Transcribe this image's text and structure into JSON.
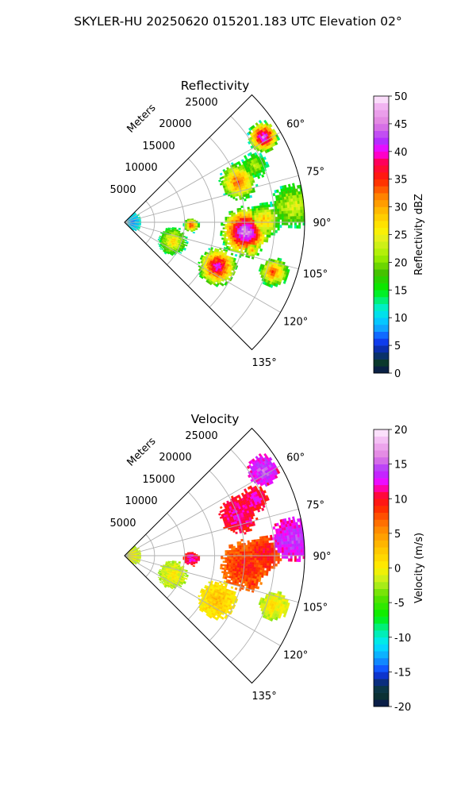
{
  "figure_title": "SKYLER-HU  20250620  015201.183 UTC Elevation 02°",
  "chart_data": [
    {
      "type": "heatmap",
      "projection": "polar-sector",
      "title": "Reflectivity",
      "radial_label": "Meters",
      "radial_ticks": [
        "5000",
        "10000",
        "15000",
        "20000",
        "25000"
      ],
      "radial_tick_values": [
        5000,
        10000,
        15000,
        20000,
        25000
      ],
      "range_max": 30000,
      "azimuth_range": [
        45,
        135
      ],
      "azimuth_ticks": [
        "60°",
        "75°",
        "90°",
        "105°",
        "120°",
        "135°"
      ],
      "azimuth_tick_values": [
        60,
        75,
        90,
        105,
        120,
        135
      ],
      "grid": true,
      "colorbar": {
        "label": "Reflectivity dBZ",
        "range": [
          0,
          50
        ],
        "ticks": [
          "0",
          "5",
          "10",
          "15",
          "20",
          "25",
          "30",
          "35",
          "40",
          "45",
          "50"
        ],
        "tick_values": [
          0,
          5,
          10,
          15,
          20,
          25,
          30,
          35,
          40,
          45,
          50
        ],
        "colors": [
          [
            0,
            "#0a1450"
          ],
          [
            2,
            "#0b3a2a"
          ],
          [
            4,
            "#0a2a9a"
          ],
          [
            6,
            "#1040ff"
          ],
          [
            8,
            "#10a0ff"
          ],
          [
            10,
            "#00d8ff"
          ],
          [
            12,
            "#00f0c0"
          ],
          [
            15,
            "#00f000"
          ],
          [
            18,
            "#40c000"
          ],
          [
            21,
            "#a0f000"
          ],
          [
            24,
            "#e0f020"
          ],
          [
            26,
            "#fff000"
          ],
          [
            29,
            "#ffc000"
          ],
          [
            32,
            "#ff8000"
          ],
          [
            35,
            "#ff2000"
          ],
          [
            38,
            "#ff0050"
          ],
          [
            40,
            "#ff00ff"
          ],
          [
            42,
            "#b030ff"
          ],
          [
            45,
            "#e080e0"
          ],
          [
            48,
            "#f0b0f0"
          ],
          [
            50,
            "#fff0ff"
          ]
        ]
      },
      "cells": [
        {
          "az": 58,
          "range": 27000,
          "peak": 45,
          "size": 2600
        },
        {
          "az": 70,
          "range": 20000,
          "peak": 35,
          "size": 3200
        },
        {
          "az": 66,
          "range": 23500,
          "peak": 22,
          "size": 2200
        },
        {
          "az": 84,
          "range": 28000,
          "peak": 25,
          "size": 3800
        },
        {
          "az": 94,
          "range": 20000,
          "peak": 48,
          "size": 4200
        },
        {
          "az": 89,
          "range": 23000,
          "peak": 30,
          "size": 3000
        },
        {
          "az": 92,
          "range": 11000,
          "peak": 36,
          "size": 1300
        },
        {
          "az": 115,
          "range": 17000,
          "peak": 42,
          "size": 3300
        },
        {
          "az": 111,
          "range": 8500,
          "peak": 28,
          "size": 2400
        },
        {
          "az": 108,
          "range": 26000,
          "peak": 34,
          "size": 2500
        },
        {
          "az": 102,
          "range": 21500,
          "peak": 30,
          "size": 1400
        },
        {
          "az": 90,
          "range": 1200,
          "peak": 8,
          "size": 1500
        }
      ]
    },
    {
      "type": "heatmap",
      "projection": "polar-sector",
      "title": "Velocity",
      "radial_label": "Meters",
      "radial_ticks": [
        "5000",
        "10000",
        "15000",
        "20000",
        "25000"
      ],
      "radial_tick_values": [
        5000,
        10000,
        15000,
        20000,
        25000
      ],
      "range_max": 30000,
      "azimuth_range": [
        45,
        135
      ],
      "azimuth_ticks": [
        "60°",
        "75°",
        "90°",
        "105°",
        "120°",
        "135°"
      ],
      "azimuth_tick_values": [
        60,
        75,
        90,
        105,
        120,
        135
      ],
      "grid": true,
      "colorbar": {
        "label": "Velocity (m/s)",
        "range": [
          -20,
          20
        ],
        "ticks": [
          "-20",
          "-15",
          "-10",
          "-5",
          "0",
          "5",
          "10",
          "15",
          "20"
        ],
        "tick_values": [
          -20,
          -15,
          -10,
          -5,
          0,
          5,
          10,
          15,
          20
        ],
        "colors": [
          [
            -20,
            "#0a1450"
          ],
          [
            -18,
            "#0b3a2a"
          ],
          [
            -16,
            "#0a2a9a"
          ],
          [
            -15,
            "#1040ff"
          ],
          [
            -13,
            "#10a0ff"
          ],
          [
            -11,
            "#00e8ff"
          ],
          [
            -9,
            "#00f0a0"
          ],
          [
            -7,
            "#00f000"
          ],
          [
            -4,
            "#60e000"
          ],
          [
            -2,
            "#c0f020"
          ],
          [
            0,
            "#fff000"
          ],
          [
            3,
            "#ffc000"
          ],
          [
            6,
            "#ff8000"
          ],
          [
            9,
            "#ff2000"
          ],
          [
            11,
            "#ff0050"
          ],
          [
            12,
            "#ff00ff"
          ],
          [
            14,
            "#b030ff"
          ],
          [
            16,
            "#e080e0"
          ],
          [
            18,
            "#f0b0f0"
          ],
          [
            20,
            "#fff0ff"
          ]
        ]
      },
      "cells": [
        {
          "az": 58,
          "range": 27000,
          "peak": 15,
          "size": 2600
        },
        {
          "az": 70,
          "range": 20000,
          "peak": 12.5,
          "size": 3200
        },
        {
          "az": 66,
          "range": 23500,
          "peak": 12.5,
          "size": 2200
        },
        {
          "az": 84,
          "range": 28000,
          "peak": 14.5,
          "size": 3800
        },
        {
          "az": 94,
          "range": 20000,
          "peak": 9.5,
          "size": 4200
        },
        {
          "az": 89,
          "range": 23000,
          "peak": 10.5,
          "size": 3000
        },
        {
          "az": 92,
          "range": 11000,
          "peak": 12.5,
          "size": 1300
        },
        {
          "az": 115,
          "range": 17000,
          "peak": 3,
          "size": 3300
        },
        {
          "az": 111,
          "range": 8500,
          "peak": 0.5,
          "size": 2400
        },
        {
          "az": 108,
          "range": 26000,
          "peak": 1,
          "size": 2500
        },
        {
          "az": 102,
          "range": 21500,
          "peak": 9,
          "size": 1400
        },
        {
          "az": 90,
          "range": 1200,
          "peak": 0.5,
          "size": 1500
        }
      ]
    }
  ]
}
